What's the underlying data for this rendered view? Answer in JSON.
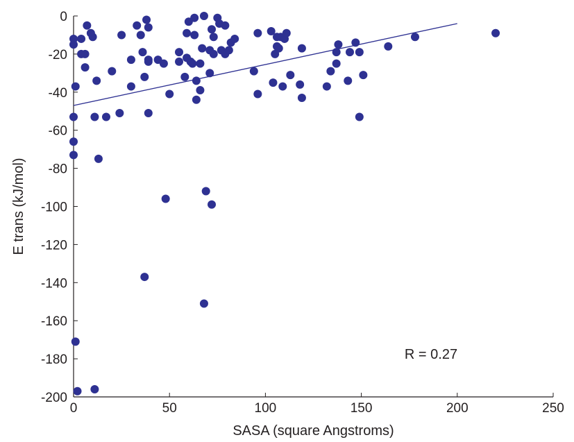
{
  "chart_data": {
    "type": "scatter",
    "xlabel": "SASA (square Angstroms)",
    "ylabel": "E trans (kJ/mol)",
    "xlim": [
      0,
      250
    ],
    "ylim": [
      -200,
      0
    ],
    "xticks": [
      0,
      50,
      100,
      150,
      200,
      250
    ],
    "yticks": [
      0,
      -20,
      -40,
      -60,
      -80,
      -100,
      -120,
      -140,
      -160,
      -180,
      -200
    ],
    "annotation": "R = 0.27",
    "marker_color": "#2e3192",
    "line_color": "#2e3192",
    "axis_color": "#231f20",
    "grid": false,
    "fit_line": {
      "x": [
        0,
        200
      ],
      "y": [
        -47,
        -4
      ]
    },
    "points": [
      {
        "x": 0,
        "y": -12
      },
      {
        "x": 0,
        "y": -15
      },
      {
        "x": 0,
        "y": -53
      },
      {
        "x": 0,
        "y": -66
      },
      {
        "x": 0,
        "y": -73
      },
      {
        "x": 1,
        "y": -37
      },
      {
        "x": 1,
        "y": -171
      },
      {
        "x": 2,
        "y": -197
      },
      {
        "x": 4,
        "y": -12
      },
      {
        "x": 4,
        "y": -20
      },
      {
        "x": 6,
        "y": -20
      },
      {
        "x": 6,
        "y": -27
      },
      {
        "x": 7,
        "y": -5
      },
      {
        "x": 9,
        "y": -9
      },
      {
        "x": 10,
        "y": -11
      },
      {
        "x": 11,
        "y": -53
      },
      {
        "x": 11,
        "y": -196
      },
      {
        "x": 12,
        "y": -34
      },
      {
        "x": 13,
        "y": -75
      },
      {
        "x": 17,
        "y": -53
      },
      {
        "x": 20,
        "y": -29
      },
      {
        "x": 24,
        "y": -51
      },
      {
        "x": 25,
        "y": -10
      },
      {
        "x": 30,
        "y": -23
      },
      {
        "x": 30,
        "y": -37
      },
      {
        "x": 33,
        "y": -5
      },
      {
        "x": 35,
        "y": -10
      },
      {
        "x": 36,
        "y": -19
      },
      {
        "x": 37,
        "y": -32
      },
      {
        "x": 37,
        "y": -137
      },
      {
        "x": 38,
        "y": -2
      },
      {
        "x": 39,
        "y": -6
      },
      {
        "x": 39,
        "y": -23
      },
      {
        "x": 39,
        "y": -24
      },
      {
        "x": 39,
        "y": -51
      },
      {
        "x": 44,
        "y": -23
      },
      {
        "x": 47,
        "y": -25
      },
      {
        "x": 48,
        "y": -96
      },
      {
        "x": 50,
        "y": -41
      },
      {
        "x": 55,
        "y": -19
      },
      {
        "x": 55,
        "y": -24
      },
      {
        "x": 58,
        "y": -32
      },
      {
        "x": 59,
        "y": -22
      },
      {
        "x": 59,
        "y": -9
      },
      {
        "x": 60,
        "y": -3
      },
      {
        "x": 61,
        "y": -24
      },
      {
        "x": 62,
        "y": -25
      },
      {
        "x": 63,
        "y": -1
      },
      {
        "x": 63,
        "y": -10
      },
      {
        "x": 64,
        "y": -44
      },
      {
        "x": 64,
        "y": -34
      },
      {
        "x": 66,
        "y": -25
      },
      {
        "x": 66,
        "y": -39
      },
      {
        "x": 67,
        "y": -17
      },
      {
        "x": 68,
        "y": 0
      },
      {
        "x": 68,
        "y": -151
      },
      {
        "x": 69,
        "y": -92
      },
      {
        "x": 71,
        "y": -18
      },
      {
        "x": 71,
        "y": -30
      },
      {
        "x": 72,
        "y": -99
      },
      {
        "x": 72,
        "y": -7
      },
      {
        "x": 73,
        "y": -11
      },
      {
        "x": 73,
        "y": -20
      },
      {
        "x": 75,
        "y": -1
      },
      {
        "x": 76,
        "y": -4
      },
      {
        "x": 77,
        "y": -18
      },
      {
        "x": 79,
        "y": -5
      },
      {
        "x": 79,
        "y": -20
      },
      {
        "x": 81,
        "y": -18
      },
      {
        "x": 82,
        "y": -14
      },
      {
        "x": 84,
        "y": -12
      },
      {
        "x": 94,
        "y": -29
      },
      {
        "x": 96,
        "y": -9
      },
      {
        "x": 96,
        "y": -41
      },
      {
        "x": 103,
        "y": -8
      },
      {
        "x": 104,
        "y": -35
      },
      {
        "x": 105,
        "y": -20
      },
      {
        "x": 106,
        "y": -11
      },
      {
        "x": 106,
        "y": -16
      },
      {
        "x": 107,
        "y": -17
      },
      {
        "x": 108,
        "y": -11
      },
      {
        "x": 109,
        "y": -37
      },
      {
        "x": 110,
        "y": -12
      },
      {
        "x": 111,
        "y": -9
      },
      {
        "x": 113,
        "y": -31
      },
      {
        "x": 118,
        "y": -36
      },
      {
        "x": 119,
        "y": -17
      },
      {
        "x": 119,
        "y": -43
      },
      {
        "x": 132,
        "y": -37
      },
      {
        "x": 134,
        "y": -29
      },
      {
        "x": 137,
        "y": -25
      },
      {
        "x": 137,
        "y": -19
      },
      {
        "x": 138,
        "y": -15
      },
      {
        "x": 143,
        "y": -34
      },
      {
        "x": 144,
        "y": -19
      },
      {
        "x": 147,
        "y": -14
      },
      {
        "x": 149,
        "y": -19
      },
      {
        "x": 149,
        "y": -53
      },
      {
        "x": 151,
        "y": -31
      },
      {
        "x": 164,
        "y": -16
      },
      {
        "x": 178,
        "y": -11
      },
      {
        "x": 220,
        "y": -9
      }
    ]
  }
}
